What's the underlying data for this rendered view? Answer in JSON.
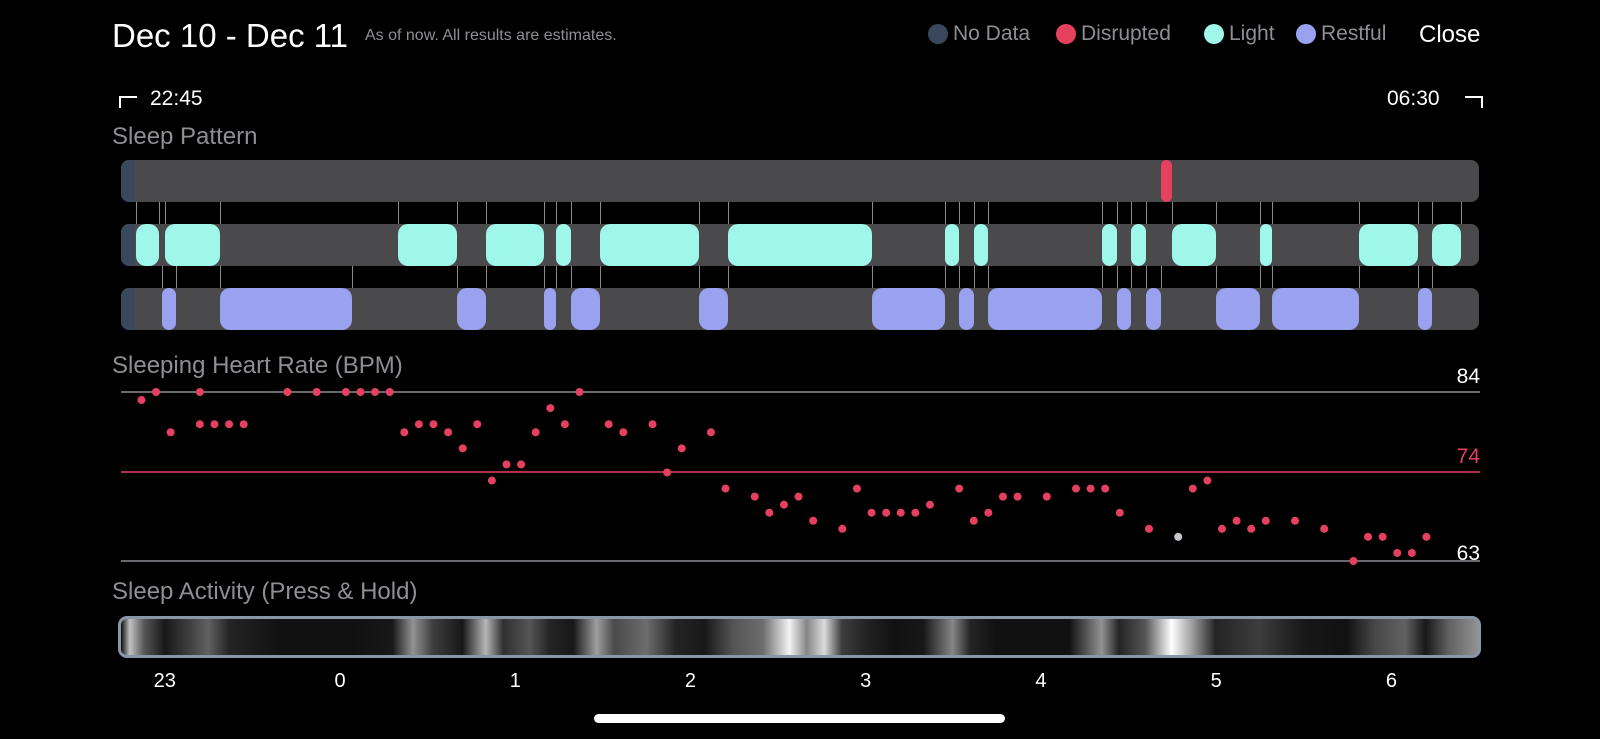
{
  "header": {
    "title": "Dec 10 - Dec 11",
    "subtitle": "As of now. All results are estimates.",
    "close_label": "Close"
  },
  "legend": [
    {
      "label": "No Data",
      "color": "#3a475c"
    },
    {
      "label": "Disrupted",
      "color": "#e5415f"
    },
    {
      "label": "Light",
      "color": "#9ff7ea"
    },
    {
      "label": "Restful",
      "color": "#9aa2f0"
    }
  ],
  "time_range": {
    "start": "22:45",
    "end": "06:30"
  },
  "sections": {
    "sleep_pattern": "Sleep Pattern",
    "heart_rate": "Sleeping Heart Rate (BPM)",
    "activity": "Sleep Activity (Press & Hold)"
  },
  "sleep_pattern": {
    "disrupted": [
      {
        "start": "04:41",
        "end": "04:45"
      }
    ],
    "light": [
      {
        "start": "22:50",
        "end": "22:58"
      },
      {
        "start": "23:00",
        "end": "23:19"
      },
      {
        "start": "00:20",
        "end": "00:40"
      },
      {
        "start": "00:50",
        "end": "01:10"
      },
      {
        "start": "01:14",
        "end": "01:19"
      },
      {
        "start": "01:29",
        "end": "02:03"
      },
      {
        "start": "02:13",
        "end": "03:02"
      },
      {
        "start": "03:27",
        "end": "03:32"
      },
      {
        "start": "03:37",
        "end": "03:42"
      },
      {
        "start": "04:21",
        "end": "04:26"
      },
      {
        "start": "04:31",
        "end": "04:36"
      },
      {
        "start": "04:45",
        "end": "05:00"
      },
      {
        "start": "05:15",
        "end": "05:19"
      },
      {
        "start": "05:49",
        "end": "06:09"
      },
      {
        "start": "06:14",
        "end": "06:24"
      }
    ],
    "restful": [
      {
        "start": "22:59",
        "end": "23:04"
      },
      {
        "start": "23:19",
        "end": "00:04"
      },
      {
        "start": "00:40",
        "end": "00:50"
      },
      {
        "start": "01:10",
        "end": "01:14"
      },
      {
        "start": "01:19",
        "end": "01:29"
      },
      {
        "start": "02:03",
        "end": "02:13"
      },
      {
        "start": "03:02",
        "end": "03:27"
      },
      {
        "start": "03:32",
        "end": "03:37"
      },
      {
        "start": "03:42",
        "end": "04:21"
      },
      {
        "start": "04:26",
        "end": "04:31"
      },
      {
        "start": "04:36",
        "end": "04:41"
      },
      {
        "start": "05:00",
        "end": "05:15"
      },
      {
        "start": "05:19",
        "end": "05:49"
      },
      {
        "start": "06:09",
        "end": "06:14"
      }
    ]
  },
  "heart_rate": {
    "max": "84",
    "avg": "74",
    "min": "63",
    "colors": {
      "point": "#e5415f",
      "current": "#c7c7cc",
      "avg_line": "#e5415f",
      "grid": "#8e8e93"
    },
    "points": [
      {
        "t": "22:52",
        "bpm": 83
      },
      {
        "t": "22:57",
        "bpm": 84
      },
      {
        "t": "23:02",
        "bpm": 79
      },
      {
        "t": "23:12",
        "bpm": 84
      },
      {
        "t": "23:17",
        "bpm": 80
      },
      {
        "t": "23:22",
        "bpm": 80
      },
      {
        "t": "23:27",
        "bpm": 80
      },
      {
        "t": "23:12",
        "bpm": 80
      },
      {
        "t": "23:42",
        "bpm": 84
      },
      {
        "t": "23:52",
        "bpm": 84
      },
      {
        "t": "00:02",
        "bpm": 84
      },
      {
        "t": "00:07",
        "bpm": 84
      },
      {
        "t": "00:12",
        "bpm": 84
      },
      {
        "t": "00:17",
        "bpm": 84
      },
      {
        "t": "00:22",
        "bpm": 79
      },
      {
        "t": "00:27",
        "bpm": 80
      },
      {
        "t": "00:32",
        "bpm": 80
      },
      {
        "t": "00:37",
        "bpm": 79
      },
      {
        "t": "00:42",
        "bpm": 77
      },
      {
        "t": "00:47",
        "bpm": 80
      },
      {
        "t": "00:52",
        "bpm": 73
      },
      {
        "t": "00:57",
        "bpm": 75
      },
      {
        "t": "01:02",
        "bpm": 75
      },
      {
        "t": "01:07",
        "bpm": 79
      },
      {
        "t": "01:12",
        "bpm": 82
      },
      {
        "t": "01:17",
        "bpm": 80
      },
      {
        "t": "01:22",
        "bpm": 84
      },
      {
        "t": "01:32",
        "bpm": 80
      },
      {
        "t": "01:37",
        "bpm": 79
      },
      {
        "t": "01:47",
        "bpm": 80
      },
      {
        "t": "01:52",
        "bpm": 74
      },
      {
        "t": "01:57",
        "bpm": 77
      },
      {
        "t": "02:07",
        "bpm": 79
      },
      {
        "t": "02:12",
        "bpm": 72
      },
      {
        "t": "02:22",
        "bpm": 71
      },
      {
        "t": "02:27",
        "bpm": 69
      },
      {
        "t": "02:32",
        "bpm": 70
      },
      {
        "t": "02:37",
        "bpm": 71
      },
      {
        "t": "02:42",
        "bpm": 68
      },
      {
        "t": "02:52",
        "bpm": 67
      },
      {
        "t": "02:57",
        "bpm": 72
      },
      {
        "t": "03:02",
        "bpm": 69
      },
      {
        "t": "03:07",
        "bpm": 69
      },
      {
        "t": "03:12",
        "bpm": 69
      },
      {
        "t": "03:17",
        "bpm": 69
      },
      {
        "t": "03:22",
        "bpm": 70
      },
      {
        "t": "03:32",
        "bpm": 72
      },
      {
        "t": "03:37",
        "bpm": 68
      },
      {
        "t": "03:42",
        "bpm": 69
      },
      {
        "t": "03:47",
        "bpm": 71
      },
      {
        "t": "03:52",
        "bpm": 71
      },
      {
        "t": "04:02",
        "bpm": 71
      },
      {
        "t": "04:12",
        "bpm": 72
      },
      {
        "t": "04:17",
        "bpm": 72
      },
      {
        "t": "04:22",
        "bpm": 72
      },
      {
        "t": "04:27",
        "bpm": 69
      },
      {
        "t": "04:37",
        "bpm": 67
      },
      {
        "t": "04:52",
        "bpm": 72
      },
      {
        "t": "04:57",
        "bpm": 73
      },
      {
        "t": "05:02",
        "bpm": 67
      },
      {
        "t": "05:07",
        "bpm": 68
      },
      {
        "t": "05:12",
        "bpm": 67
      },
      {
        "t": "05:17",
        "bpm": 68
      },
      {
        "t": "05:27",
        "bpm": 68
      },
      {
        "t": "05:37",
        "bpm": 67
      },
      {
        "t": "05:47",
        "bpm": 63
      },
      {
        "t": "05:52",
        "bpm": 66
      },
      {
        "t": "05:57",
        "bpm": 66
      },
      {
        "t": "06:02",
        "bpm": 64
      },
      {
        "t": "06:07",
        "bpm": 64
      },
      {
        "t": "06:12",
        "bpm": 66
      }
    ],
    "current_point": {
      "t": "04:47",
      "bpm": 66
    }
  },
  "activity": {
    "levels": [
      {
        "t": "22:45",
        "v": 0.0
      },
      {
        "t": "22:48",
        "v": 0.75
      },
      {
        "t": "22:53",
        "v": 0.3
      },
      {
        "t": "23:00",
        "v": 0.05
      },
      {
        "t": "23:08",
        "v": 0.2
      },
      {
        "t": "23:15",
        "v": 0.35
      },
      {
        "t": "23:22",
        "v": 0.1
      },
      {
        "t": "23:40",
        "v": 0.02
      },
      {
        "t": "00:05",
        "v": 0.02
      },
      {
        "t": "00:18",
        "v": 0.05
      },
      {
        "t": "00:25",
        "v": 0.55
      },
      {
        "t": "00:32",
        "v": 0.2
      },
      {
        "t": "00:42",
        "v": 0.05
      },
      {
        "t": "00:50",
        "v": 0.7
      },
      {
        "t": "00:56",
        "v": 0.15
      },
      {
        "t": "01:05",
        "v": 0.3
      },
      {
        "t": "01:12",
        "v": 0.1
      },
      {
        "t": "01:20",
        "v": 0.05
      },
      {
        "t": "01:28",
        "v": 0.6
      },
      {
        "t": "01:34",
        "v": 0.25
      },
      {
        "t": "01:45",
        "v": 0.4
      },
      {
        "t": "01:55",
        "v": 0.1
      },
      {
        "t": "02:05",
        "v": 0.05
      },
      {
        "t": "02:15",
        "v": 0.3
      },
      {
        "t": "02:25",
        "v": 0.4
      },
      {
        "t": "02:34",
        "v": 0.95
      },
      {
        "t": "02:40",
        "v": 0.5
      },
      {
        "t": "02:46",
        "v": 0.85
      },
      {
        "t": "02:52",
        "v": 0.2
      },
      {
        "t": "03:00",
        "v": 0.1
      },
      {
        "t": "03:10",
        "v": 0.02
      },
      {
        "t": "03:20",
        "v": 0.05
      },
      {
        "t": "03:30",
        "v": 0.5
      },
      {
        "t": "03:36",
        "v": 0.1
      },
      {
        "t": "03:45",
        "v": 0.02
      },
      {
        "t": "04:10",
        "v": 0.02
      },
      {
        "t": "04:21",
        "v": 0.55
      },
      {
        "t": "04:27",
        "v": 0.1
      },
      {
        "t": "04:36",
        "v": 0.3
      },
      {
        "t": "04:45",
        "v": 1.0
      },
      {
        "t": "04:52",
        "v": 0.6
      },
      {
        "t": "05:00",
        "v": 0.1
      },
      {
        "t": "05:15",
        "v": 0.2
      },
      {
        "t": "05:30",
        "v": 0.05
      },
      {
        "t": "05:45",
        "v": 0.02
      },
      {
        "t": "05:55",
        "v": 0.25
      },
      {
        "t": "06:05",
        "v": 0.35
      },
      {
        "t": "06:12",
        "v": 0.05
      },
      {
        "t": "06:20",
        "v": 0.35
      },
      {
        "t": "06:30",
        "v": 0.55
      }
    ]
  },
  "axis": {
    "ticks": [
      {
        "label": "23",
        "t": "23:00"
      },
      {
        "label": "0",
        "t": "00:00"
      },
      {
        "label": "1",
        "t": "01:00"
      },
      {
        "label": "2",
        "t": "02:00"
      },
      {
        "label": "3",
        "t": "03:00"
      },
      {
        "label": "4",
        "t": "04:00"
      },
      {
        "label": "5",
        "t": "05:00"
      },
      {
        "label": "6",
        "t": "06:00"
      }
    ]
  }
}
